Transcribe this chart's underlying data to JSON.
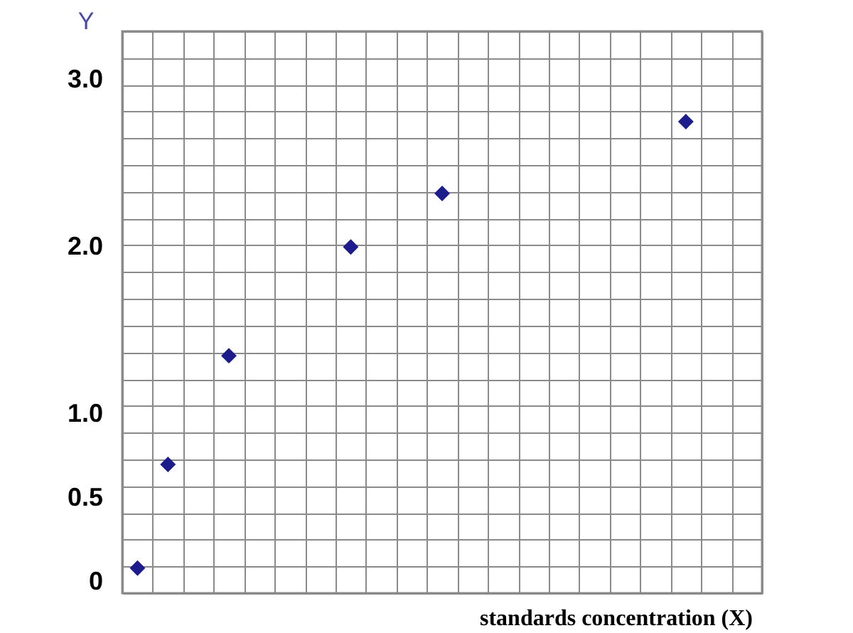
{
  "chart_data": {
    "type": "scatter",
    "ylabel": "Y",
    "xlabel": "standards concentration (X)",
    "categories": [
      null,
      null,
      null,
      null,
      null,
      null,
      null,
      null,
      null,
      null,
      null,
      null,
      null,
      null,
      null,
      null,
      null,
      null,
      null,
      null,
      null
    ],
    "values": [
      0.08,
      0.7,
      null,
      1.35,
      null,
      null,
      null,
      2.0,
      null,
      null,
      2.32,
      null,
      null,
      null,
      null,
      null,
      null,
      null,
      2.75,
      null,
      null
    ],
    "color": "#1c1c8c",
    "marker": "diamond",
    "ylim": [
      -0.07,
      3.29
    ],
    "yticks": [
      {
        "value": -0.07,
        "label": null
      },
      0,
      {
        "value": 0.09,
        "label": null
      },
      {
        "value": 0.25,
        "label": null
      },
      {
        "value": 0.41,
        "label": null
      },
      0.5,
      {
        "value": 0.57,
        "label": null
      },
      {
        "value": 0.73,
        "label": null
      },
      {
        "value": 0.89,
        "label": null
      },
      {
        "value": 1,
        "label": "1.0"
      },
      {
        "value": 1.05,
        "label": null
      },
      {
        "value": 1.21,
        "label": null
      },
      {
        "value": 1.37,
        "label": null
      },
      {
        "value": 1.53,
        "label": null
      },
      {
        "value": 1.69,
        "label": null
      },
      {
        "value": 1.85,
        "label": null
      },
      {
        "value": 2,
        "label": "2.0"
      },
      {
        "value": 2.01,
        "label": null
      },
      {
        "value": 2.17,
        "label": null
      },
      {
        "value": 2.33,
        "label": null
      },
      {
        "value": 2.49,
        "label": null
      },
      {
        "value": 2.65,
        "label": null
      },
      {
        "value": 2.81,
        "label": null
      },
      {
        "value": 2.97,
        "label": null
      },
      {
        "value": 3,
        "label": "3.0"
      },
      {
        "value": 3.13,
        "label": null
      },
      {
        "value": 3.29,
        "label": null
      }
    ],
    "grid": true,
    "tick_labels": "y"
  }
}
